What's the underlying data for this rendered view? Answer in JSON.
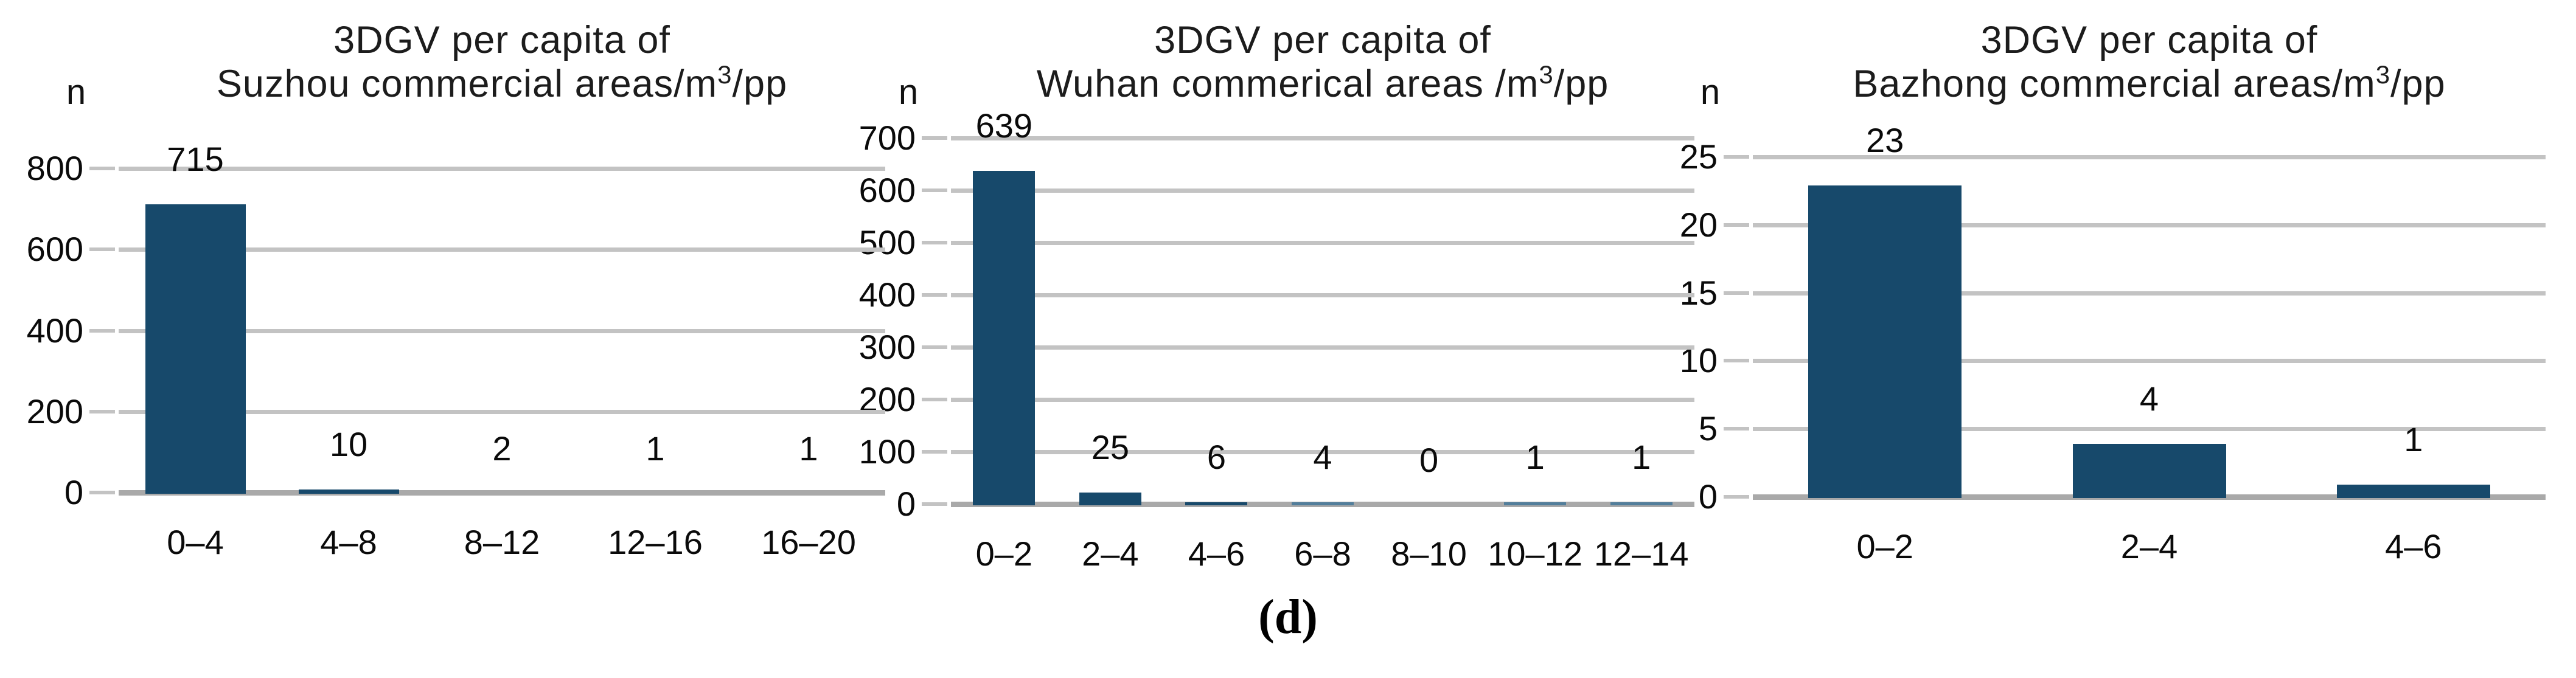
{
  "caption": "(d)",
  "colors": {
    "bar": "#17496B",
    "bar_light": "#527E9B",
    "gridline": "#c3c3c3",
    "baseline": "#a9a9a9",
    "text": "#0a0a0a"
  },
  "chart_data": [
    {
      "type": "bar",
      "title_line1": "3DGV per capita of",
      "title_line2_pre": "Suzhou commercial areas/m",
      "title_superscript": "3",
      "title_line2_post": "/pp",
      "ylabel": "n",
      "categories": [
        "0–4",
        "4–8",
        "8–12",
        "12–16",
        "16–20"
      ],
      "values": [
        715,
        10,
        2,
        1,
        1
      ],
      "yticks": [
        0,
        200,
        400,
        600,
        800
      ],
      "ylim": [
        0,
        800
      ],
      "grid": true,
      "legend": "none"
    },
    {
      "type": "bar",
      "title_line1": "3DGV per capita of",
      "title_line2_pre": "Wuhan commerical areas /m",
      "title_superscript": "3",
      "title_line2_post": "/pp",
      "ylabel": "n",
      "categories": [
        "0–2",
        "2–4",
        "4–6",
        "6–8",
        "8–10",
        "10–12",
        "12–14"
      ],
      "values": [
        639,
        25,
        6,
        4,
        0,
        1,
        1
      ],
      "yticks": [
        0,
        100,
        200,
        300,
        400,
        500,
        600,
        700
      ],
      "ylim": [
        0,
        700
      ],
      "grid": true,
      "legend": "none"
    },
    {
      "type": "bar",
      "title_line1": "3DGV per capita of",
      "title_line2_pre": "Bazhong commercial areas/m",
      "title_superscript": "3",
      "title_line2_post": "/pp",
      "ylabel": "n",
      "categories": [
        "0–2",
        "2–4",
        "4–6"
      ],
      "values": [
        23,
        4,
        1
      ],
      "yticks": [
        0,
        5,
        10,
        15,
        20,
        25
      ],
      "ylim": [
        0,
        25
      ],
      "grid": true,
      "legend": "none"
    }
  ]
}
